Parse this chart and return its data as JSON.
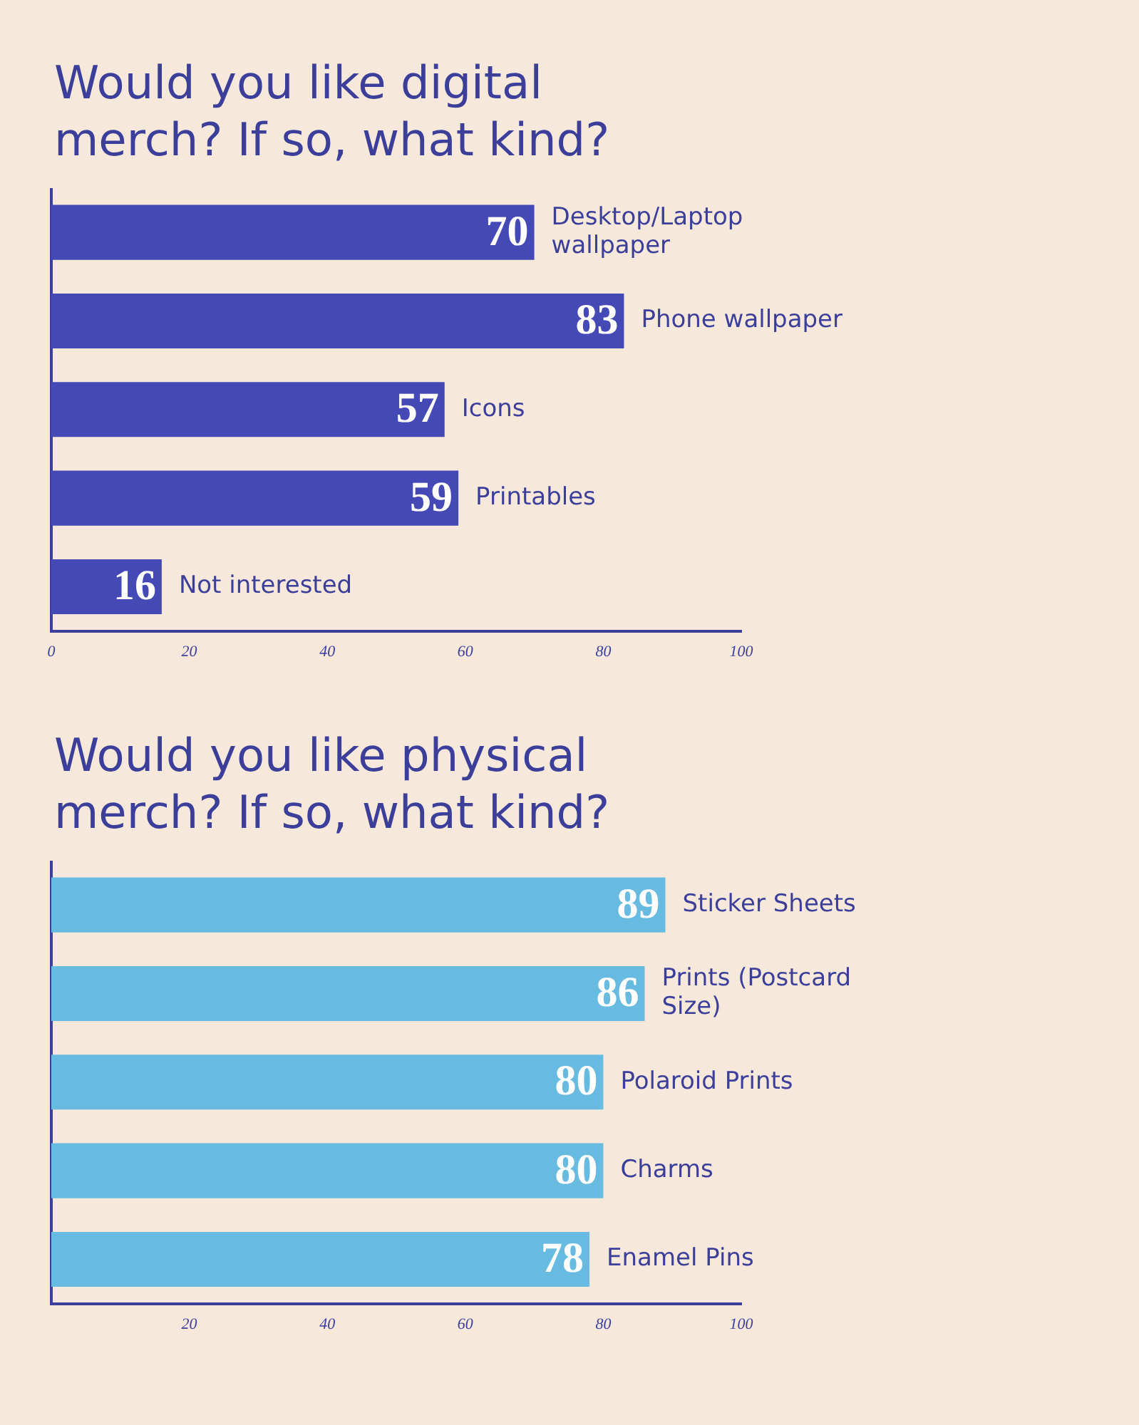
{
  "chart_data": [
    {
      "type": "bar",
      "orientation": "horizontal",
      "title": "Would you like digital merch? If so, what kind?",
      "categories": [
        "Desktop/Laptop wallpaper",
        "Phone wallpaper",
        "Icons",
        "Printables",
        "Not interested"
      ],
      "values": [
        70,
        83,
        57,
        59,
        16
      ],
      "color": "#4549b6",
      "data_labels": true,
      "xlim": [
        0,
        100
      ],
      "xticks": [
        0,
        20,
        40,
        60,
        80,
        100
      ],
      "grid": false,
      "legend": false
    },
    {
      "type": "bar",
      "orientation": "horizontal",
      "title": "Would you like physical merch? If so, what kind?",
      "categories": [
        "Sticker Sheets",
        "Prints (Postcard Size)",
        "Polaroid Prints",
        "Charms",
        "Enamel Pins"
      ],
      "values": [
        89,
        86,
        80,
        80,
        78
      ],
      "color": "#68bbe0",
      "data_labels": true,
      "xlim": [
        0,
        100
      ],
      "xticks": [
        20,
        40,
        60,
        80,
        100
      ],
      "grid": false,
      "legend": false
    }
  ]
}
